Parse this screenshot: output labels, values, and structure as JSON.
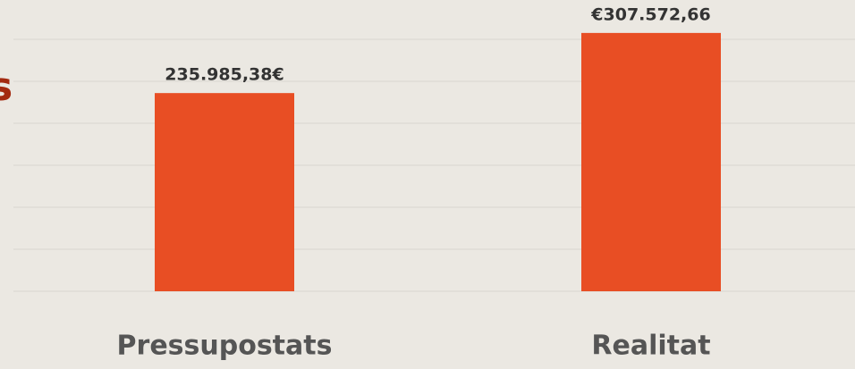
{
  "chart_data": {
    "type": "bar",
    "title": "s",
    "categories": [
      "Pressupostats",
      "Realitat"
    ],
    "values": [
      235985.38,
      307572.66
    ],
    "value_labels": [
      "235.985,38€",
      "€307.572,66"
    ],
    "color": "#e84e24",
    "ylim": [
      0,
      350000
    ],
    "yticks": [
      0,
      50000,
      100000,
      150000,
      200000,
      250000,
      300000
    ],
    "grid": true
  }
}
